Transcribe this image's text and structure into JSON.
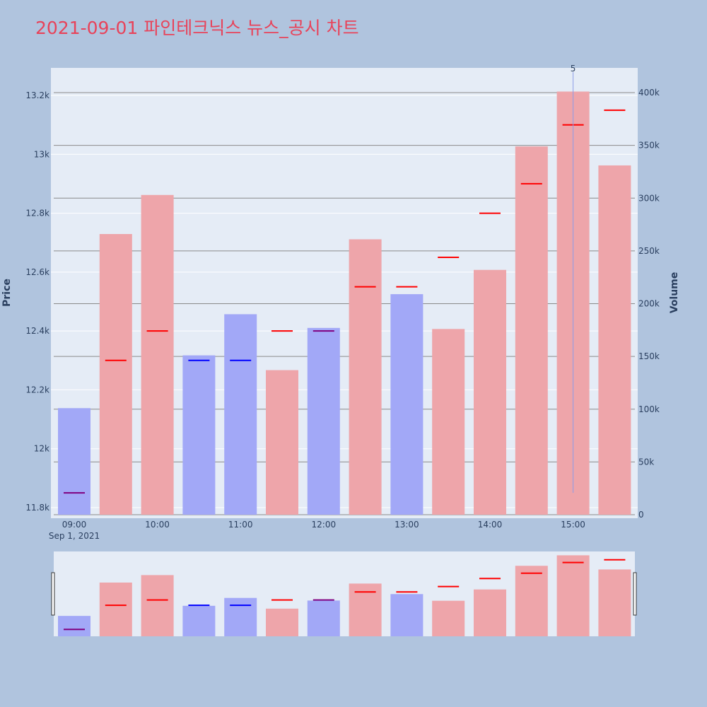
{
  "chart_data": {
    "type": "bar",
    "title": "2021-09-01 파인테크닉스 뉴스_공시 차트",
    "x_labels": [
      "09:00",
      "10:00",
      "11:00",
      "12:00",
      "13:00",
      "14:00",
      "15:00"
    ],
    "x_date_label": "Sep 1, 2021",
    "ylabel_left": "Price",
    "ylabel_right": "Volume",
    "price_ylim": [
      11770,
      13290
    ],
    "price_ticks": [
      "11.8k",
      "12k",
      "12.2k",
      "12.4k",
      "12.6k",
      "12.8k",
      "13k",
      "13.2k"
    ],
    "price_tick_values": [
      11800,
      12000,
      12200,
      12400,
      12600,
      12800,
      13000,
      13200
    ],
    "volume_ylim": [
      0,
      420000
    ],
    "volume_ticks": [
      "0",
      "50k",
      "100k",
      "150k",
      "200k",
      "250k",
      "300k",
      "350k",
      "400k"
    ],
    "volume_tick_values": [
      0,
      50000,
      100000,
      150000,
      200000,
      250000,
      300000,
      350000,
      400000
    ],
    "series": [
      {
        "name": "Volume",
        "times": [
          "09:00",
          "09:30",
          "10:00",
          "10:30",
          "11:00",
          "11:30",
          "12:00",
          "12:30",
          "13:00",
          "13:30",
          "14:00",
          "14:30",
          "15:00",
          "15:30"
        ],
        "values": [
          101000,
          266000,
          303000,
          151000,
          190000,
          137000,
          177000,
          261000,
          209000,
          176000,
          232000,
          349000,
          401000,
          331000
        ],
        "direction": [
          "down",
          "up",
          "up",
          "down",
          "down",
          "up",
          "down",
          "up",
          "down",
          "up",
          "up",
          "up",
          "up",
          "up"
        ]
      },
      {
        "name": "Price",
        "values": [
          11850,
          12300,
          12400,
          12300,
          12300,
          12400,
          12400,
          12550,
          12550,
          12650,
          12800,
          12900,
          13100,
          13150
        ],
        "line_color": [
          "#800080",
          "#ff0000",
          "#ff0000",
          "#0000ff",
          "#0000ff",
          "#ff0000",
          "#800080",
          "#ff0000",
          "#ff0000",
          "#ff0000",
          "#ff0000",
          "#ff0000",
          "#ff0000",
          "#ff0000"
        ]
      }
    ],
    "annotation": {
      "text": "5",
      "at_time": "15:00",
      "line_top_price": 13290,
      "line_bottom_price": 11850
    },
    "colors": {
      "up_bar": "#eea5aa",
      "down_bar": "#a2a8f7",
      "plot_bg": "#e5ecf6",
      "page_bg": "#b0c4de",
      "title": "#e8435a",
      "annotation_line": "#8c9ce8",
      "grid_dark": "#8a8a8a"
    }
  }
}
